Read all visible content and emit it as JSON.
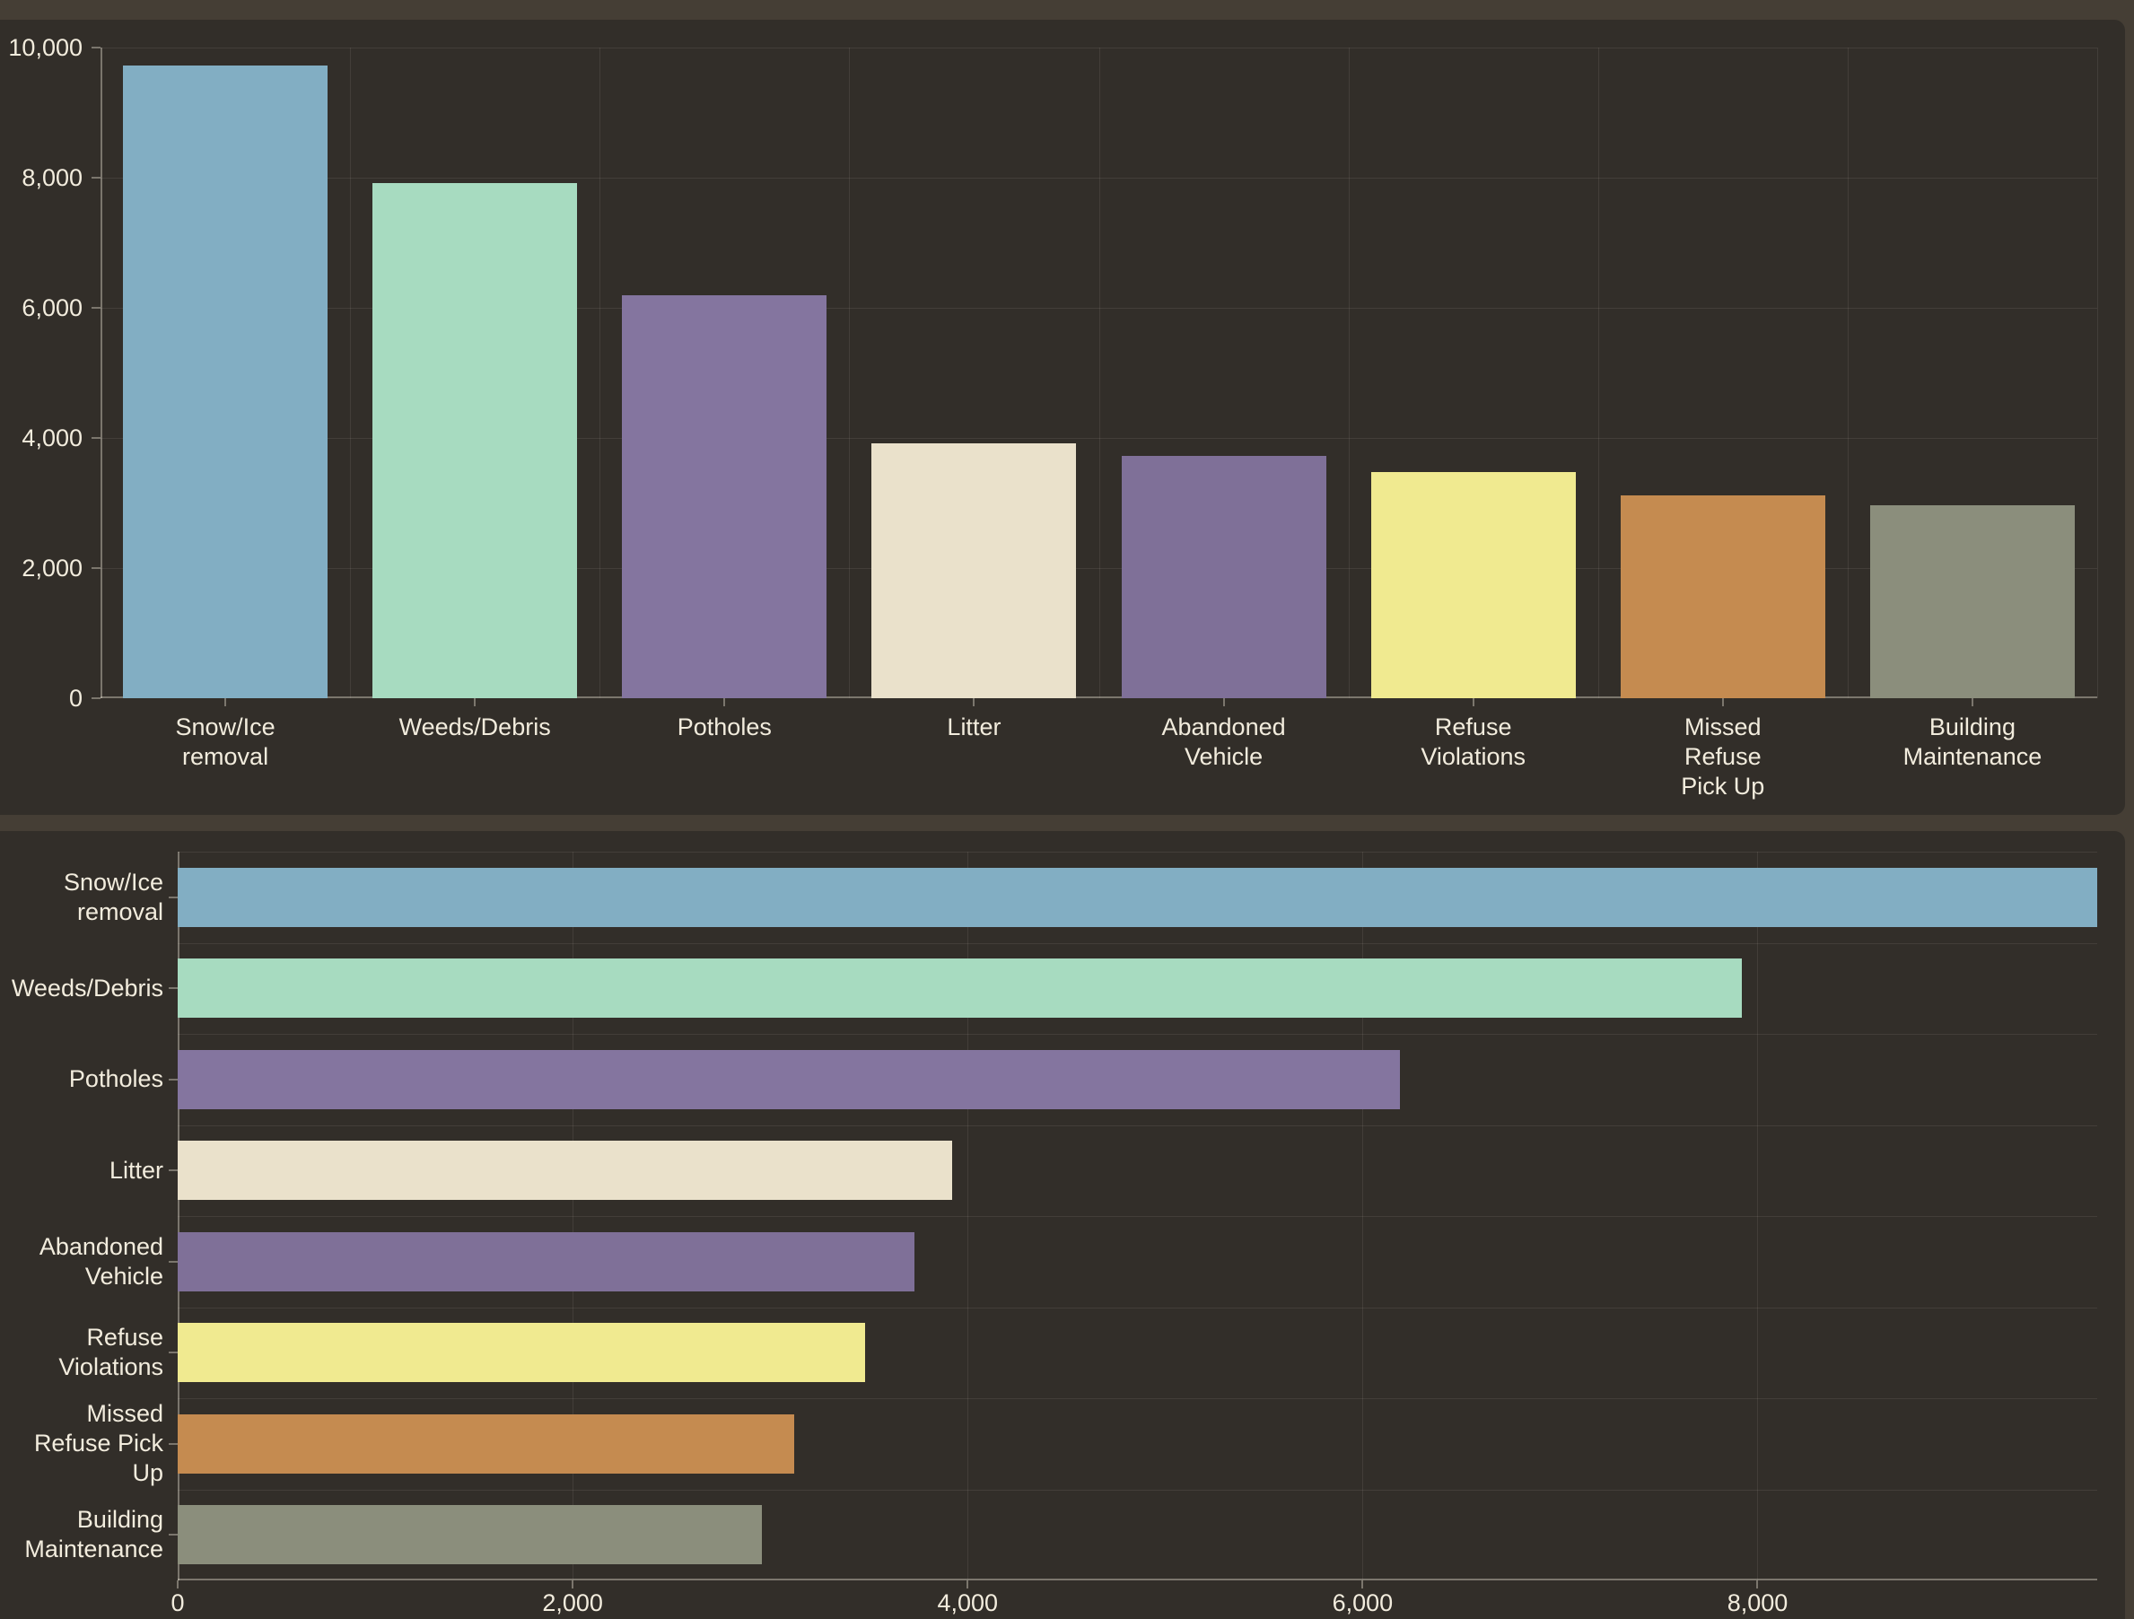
{
  "page": {
    "background_color": "#453e35",
    "panel_color": "#322e29",
    "text_color": "#f2ecdd",
    "gridline_color": "rgba(243,236,220,0.09)",
    "axis_color": "rgba(243,236,220,0.38)"
  },
  "chart_data": [
    {
      "type": "bar",
      "orientation": "vertical",
      "title": "",
      "xlabel": "",
      "ylabel": "",
      "grid": "on",
      "legend": "none",
      "categories": [
        "Snow/Ice removal",
        "Weeds/Debris",
        "Potholes",
        "Litter",
        "Abandoned Vehicle",
        "Refuse Violations",
        "Missed Refuse Pick Up",
        "Building Maintenance"
      ],
      "category_labels_wrapped": [
        "Snow/Ice\nremoval",
        "Weeds/Debris",
        "Potholes",
        "Litter",
        "Abandoned\nVehicle",
        "Refuse\nViolations",
        "Missed\nRefuse\nPick Up",
        "Building\nMaintenance"
      ],
      "values": [
        9720,
        7920,
        6190,
        3920,
        3730,
        3480,
        3120,
        2960
      ],
      "colors": [
        "#82aec3",
        "#a7dbc0",
        "#84759f",
        "#eae1cb",
        "#7f7098",
        "#f0ea90",
        "#c58b50",
        "#8b8e7c"
      ],
      "ylim": [
        0,
        10000
      ],
      "y_ticks": {
        "values": [
          0,
          2000,
          4000,
          6000,
          8000,
          10000
        ],
        "labels": [
          "0",
          "2,000",
          "4,000",
          "6,000",
          "8,000",
          "10,000"
        ]
      }
    },
    {
      "type": "bar",
      "orientation": "horizontal",
      "title": "",
      "xlabel": "",
      "ylabel": "",
      "grid": "on",
      "legend": "none",
      "categories": [
        "Snow/Ice removal",
        "Weeds/Debris",
        "Potholes",
        "Litter",
        "Abandoned Vehicle",
        "Refuse Violations",
        "Missed Refuse Pick Up",
        "Building Maintenance"
      ],
      "category_labels_wrapped": [
        "Snow/Ice\nremoval",
        "Weeds/Debris",
        "Potholes",
        "Litter",
        "Abandoned\nVehicle",
        "Refuse\nViolations",
        "Missed\nRefuse Pick\nUp",
        "Building\nMaintenance"
      ],
      "values": [
        9720,
        7920,
        6190,
        3920,
        3730,
        3480,
        3120,
        2960
      ],
      "colors": [
        "#82aec3",
        "#a7dbc0",
        "#84759f",
        "#eae1cb",
        "#7f7098",
        "#f0ea90",
        "#c58b50",
        "#8b8e7c"
      ],
      "xlim": [
        0,
        9720
      ],
      "x_ticks": {
        "values": [
          0,
          2000,
          4000,
          6000,
          8000
        ],
        "labels": [
          "0",
          "2,000",
          "4,000",
          "6,000",
          "8,000"
        ]
      }
    }
  ]
}
